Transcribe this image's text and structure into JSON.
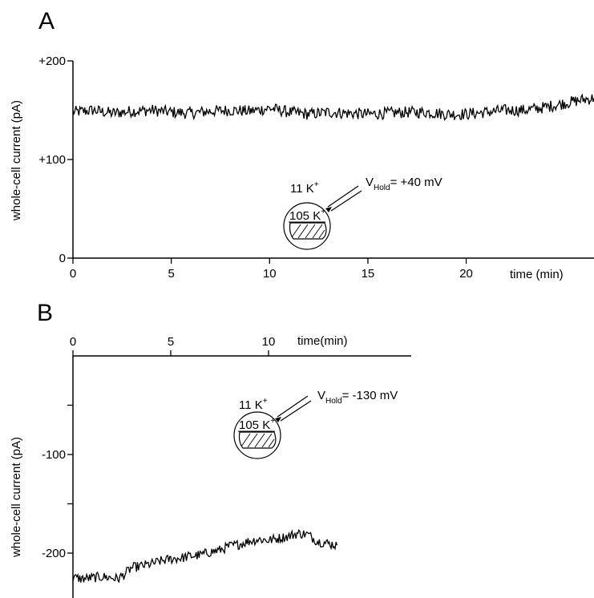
{
  "chart_data": [
    {
      "panel": "A",
      "type": "line",
      "xlabel": "time (min)",
      "ylabel": "whole-cell current (pA)",
      "x_ticks": [
        "0",
        "5",
        "10",
        "15",
        "20"
      ],
      "y_ticks": [
        "0",
        "+100",
        "+200"
      ],
      "xlim": [
        0,
        26.5
      ],
      "ylim": [
        0,
        200
      ],
      "x_tick_values": [
        0,
        5,
        10,
        15,
        20
      ],
      "y_tick_values": [
        0,
        100,
        200
      ],
      "series": [
        {
          "x": [
            0,
            1,
            2,
            3,
            4,
            5,
            6,
            7,
            8,
            9,
            10,
            11,
            12,
            13,
            14,
            15,
            16,
            17,
            18,
            19,
            20,
            21,
            22,
            23,
            24,
            25,
            26,
            26.5
          ],
          "values": [
            148,
            150,
            147,
            149,
            150,
            148,
            147,
            149,
            150,
            149,
            152,
            148,
            146,
            148,
            147,
            146,
            147,
            148,
            148,
            146,
            146,
            148,
            150,
            150,
            153,
            157,
            161,
            162
          ],
          "noise": 6
        }
      ],
      "inset": {
        "bath_label": "11 K",
        "bath_sup": "+",
        "cell_label": "105 K",
        "cell_sup": "+",
        "v_main": "V",
        "v_sub": "Hold",
        "v_value": "= +40 mV"
      }
    },
    {
      "panel": "B",
      "type": "line",
      "xlabel": "time(min)",
      "ylabel": "whole-cell current (pA)",
      "x_ticks": [
        "0",
        "5",
        "10"
      ],
      "y_ticks": [
        "-100",
        "-200"
      ],
      "xlim": [
        0,
        17.5
      ],
      "ylim": [
        -230,
        0
      ],
      "x_tick_values": [
        0,
        5,
        10
      ],
      "y_tick_values": [
        -100,
        -200
      ],
      "series": [
        {
          "x": [
            0,
            0.5,
            1,
            1.5,
            2,
            2.3,
            2.6,
            3,
            3.5,
            4,
            4.5,
            5,
            5.5,
            6,
            6.5,
            7,
            7.5,
            8,
            8.5,
            9,
            9.5,
            10,
            10.5,
            11,
            11.5,
            12,
            12.5,
            13.5
          ],
          "values": [
            -225,
            -226,
            -225,
            -224,
            -225,
            -226,
            -222,
            -215,
            -213,
            -211,
            -208,
            -206,
            -205,
            -203,
            -202,
            -199,
            -197,
            -193,
            -191,
            -188,
            -186,
            -187,
            -185,
            -183,
            -180,
            -181,
            -188,
            -192
          ],
          "noise": 5
        }
      ],
      "inset": {
        "bath_label": "11 K",
        "bath_sup": "+",
        "cell_label": "105 K",
        "cell_sup": "+",
        "v_main": "V",
        "v_sub": "Hold",
        "v_value": "= -130 mV"
      }
    }
  ],
  "panels": {
    "a_letter": "A",
    "b_letter": "B"
  }
}
